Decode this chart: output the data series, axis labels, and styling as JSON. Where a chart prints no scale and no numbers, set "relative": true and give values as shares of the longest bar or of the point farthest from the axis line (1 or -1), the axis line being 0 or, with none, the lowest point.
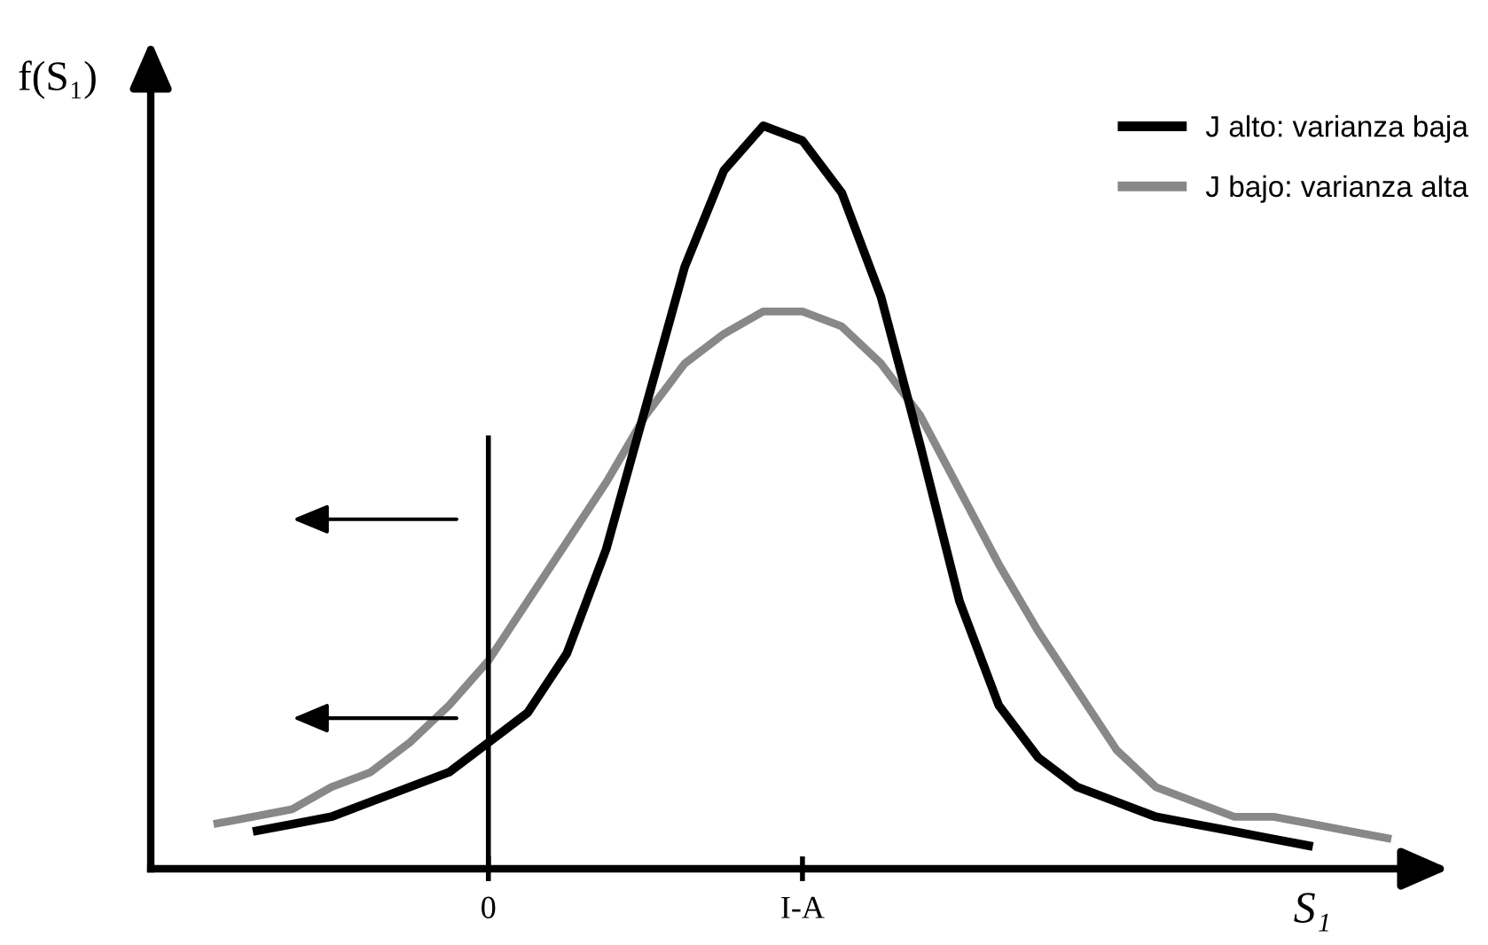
{
  "chart_data": {
    "type": "line",
    "relative": true,
    "xlabel": "S₁",
    "ylabel": "f(S₁)",
    "categories": [
      null,
      null,
      null,
      null,
      null,
      null,
      null,
      "0",
      null,
      null,
      null,
      null,
      null,
      null,
      null,
      "I-A",
      null,
      null,
      null,
      null,
      null,
      null,
      null,
      null,
      null,
      null,
      null,
      null,
      null,
      null,
      null
    ],
    "legend": "top right",
    "grid": false,
    "marker": "none",
    "line_style": "solid",
    "ref_lines": [
      {
        "axis": "x",
        "value": "0",
        "color": "#000000"
      }
    ],
    "series": [
      {
        "name": "J alto: varianza baja",
        "color": "#000000",
        "values": [
          null,
          0.05,
          0.06,
          0.07,
          0.09,
          0.11,
          0.13,
          0.17,
          0.21,
          0.29,
          0.43,
          0.62,
          0.81,
          0.94,
          1.0,
          0.98,
          0.91,
          0.77,
          0.57,
          0.36,
          0.22,
          0.15,
          0.11,
          0.09,
          0.07,
          0.06,
          0.05,
          0.04,
          0.03,
          null,
          null
        ]
      },
      {
        "name": "J bajo: varianza alta",
        "color": "#888888",
        "values": [
          0.06,
          0.07,
          0.08,
          0.11,
          0.13,
          0.17,
          0.22,
          0.28,
          0.36,
          0.44,
          0.52,
          0.61,
          0.68,
          0.72,
          0.75,
          0.75,
          0.73,
          0.68,
          0.61,
          0.51,
          0.41,
          0.32,
          0.24,
          0.16,
          0.11,
          0.09,
          0.07,
          0.07,
          0.06,
          0.05,
          0.04
        ]
      }
    ]
  }
}
